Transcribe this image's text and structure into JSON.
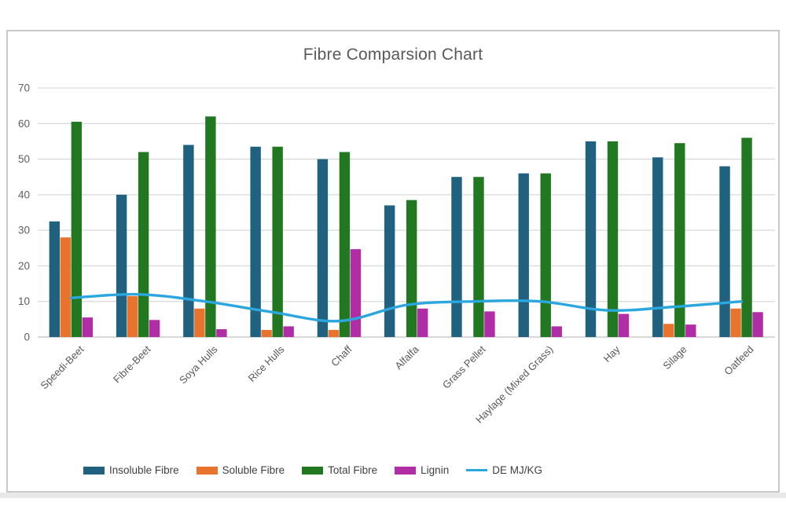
{
  "page": {
    "background": "#ffffff",
    "frame_border_color": "#c9c9c9"
  },
  "chart_data": {
    "type": "bar",
    "title": "Fibre Comparsion Chart",
    "categories": [
      "Speedi-Beet",
      "Fibre-Beet",
      "Soya Hulls",
      "Rice Hulls",
      "Chaff",
      "Alfalfa",
      "Grass Pellet",
      "Haylage (Mixed Grass)",
      "Hay",
      "Silage",
      "Oatfeed"
    ],
    "series": [
      {
        "name": "Insoluble Fibre",
        "type": "bar",
        "color": "#1F617E",
        "values": [
          32.5,
          40,
          54,
          53.5,
          50,
          37,
          45,
          46,
          55,
          50.5,
          48
        ]
      },
      {
        "name": "Soluble Fibre",
        "type": "bar",
        "color": "#E8732C",
        "values": [
          28,
          11.5,
          8,
          2,
          2,
          0,
          0,
          0,
          0,
          3.7,
          8
        ]
      },
      {
        "name": "Total Fibre",
        "type": "bar",
        "color": "#217821",
        "values": [
          60.5,
          52,
          62,
          53.5,
          52,
          38.5,
          45,
          46,
          55,
          54.5,
          56
        ]
      },
      {
        "name": "Lignin",
        "type": "bar",
        "color": "#B02DA5",
        "values": [
          5.5,
          4.8,
          2.2,
          3,
          24.7,
          8,
          7.2,
          3,
          6.5,
          3.5,
          7
        ]
      },
      {
        "name": "DE MJ/KG",
        "type": "line",
        "color": "#2BA7DE",
        "values": [
          11,
          12,
          10,
          7,
          4.5,
          9,
          10,
          10,
          7.5,
          8.5,
          10
        ]
      }
    ],
    "xlabel": "",
    "ylabel": "",
    "ylim": [
      0,
      70
    ],
    "yticks": [
      0,
      10,
      20,
      30,
      40,
      50,
      60,
      70
    ],
    "grid": true,
    "gridline_color": "#d9d9d9",
    "axis_line_color": "#c2c2c2",
    "tick_label_color": "#5f5f5f",
    "legend_position": "bottom"
  }
}
